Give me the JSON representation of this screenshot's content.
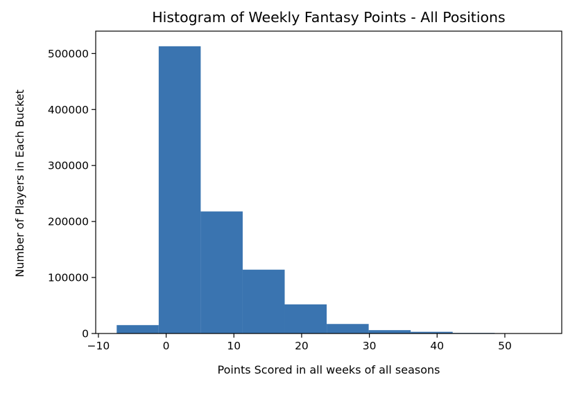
{
  "chart_data": {
    "type": "histogram",
    "title": "Histogram of Weekly Fantasy Points - All Positions",
    "xlabel": "Points Scored in all weeks of all seasons",
    "ylabel": "Number of Players in Each Bucket",
    "xlim": [
      -10.4,
      58.4
    ],
    "ylim": [
      0,
      540000
    ],
    "bin_edges": [
      -7.3,
      -1.1,
      5.1,
      11.3,
      17.5,
      23.7,
      29.9,
      36.1,
      42.3,
      48.5,
      54.7
    ],
    "counts": [
      15000,
      513000,
      218000,
      114000,
      52000,
      17000,
      6000,
      3000,
      1000,
      500
    ],
    "xticks": [
      {
        "value": -10,
        "label": "−10"
      },
      {
        "value": 0,
        "label": "0"
      },
      {
        "value": 10,
        "label": "10"
      },
      {
        "value": 20,
        "label": "20"
      },
      {
        "value": 30,
        "label": "30"
      },
      {
        "value": 40,
        "label": "40"
      },
      {
        "value": 50,
        "label": "50"
      }
    ],
    "yticks": [
      {
        "value": 0,
        "label": "0"
      },
      {
        "value": 100000,
        "label": "100000"
      },
      {
        "value": 200000,
        "label": "200000"
      },
      {
        "value": 300000,
        "label": "300000"
      },
      {
        "value": 400000,
        "label": "400000"
      },
      {
        "value": 500000,
        "label": "500000"
      }
    ],
    "bar_color": "#3a74b0",
    "grid": false
  }
}
